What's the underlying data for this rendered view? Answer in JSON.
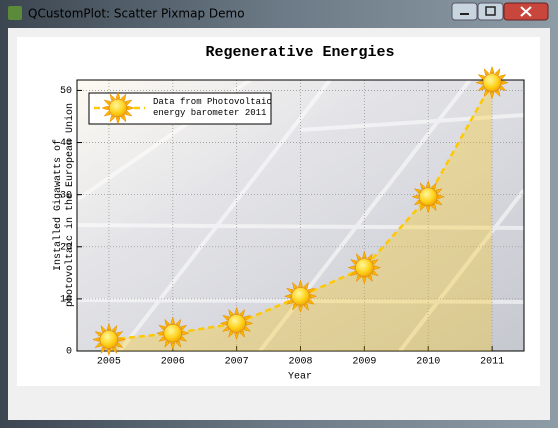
{
  "window": {
    "title": "QCustomPlot: Scatter Pixmap Demo"
  },
  "chart_data": {
    "type": "line",
    "title": "Regenerative Energies",
    "xlabel": "Year",
    "ylabel": "Installed Gigawatts of\nphotovoltaic in the European Union",
    "x": [
      2005,
      2006,
      2007,
      2008,
      2009,
      2010,
      2011
    ],
    "series": [
      {
        "name": "Data from Photovoltaic\nenergy barometer 2011",
        "color": "#ffc800",
        "values": [
          2.2,
          3.4,
          5.3,
          10.5,
          16.0,
          29.6,
          51.5
        ]
      }
    ],
    "xlim": [
      2004.5,
      2011.5
    ],
    "ylim": [
      0,
      52
    ],
    "xticks": [
      2005,
      2006,
      2007,
      2008,
      2009,
      2010,
      2011
    ],
    "yticks": [
      0,
      10,
      20,
      30,
      40,
      50
    ],
    "grid": true,
    "legend": "top-left"
  }
}
